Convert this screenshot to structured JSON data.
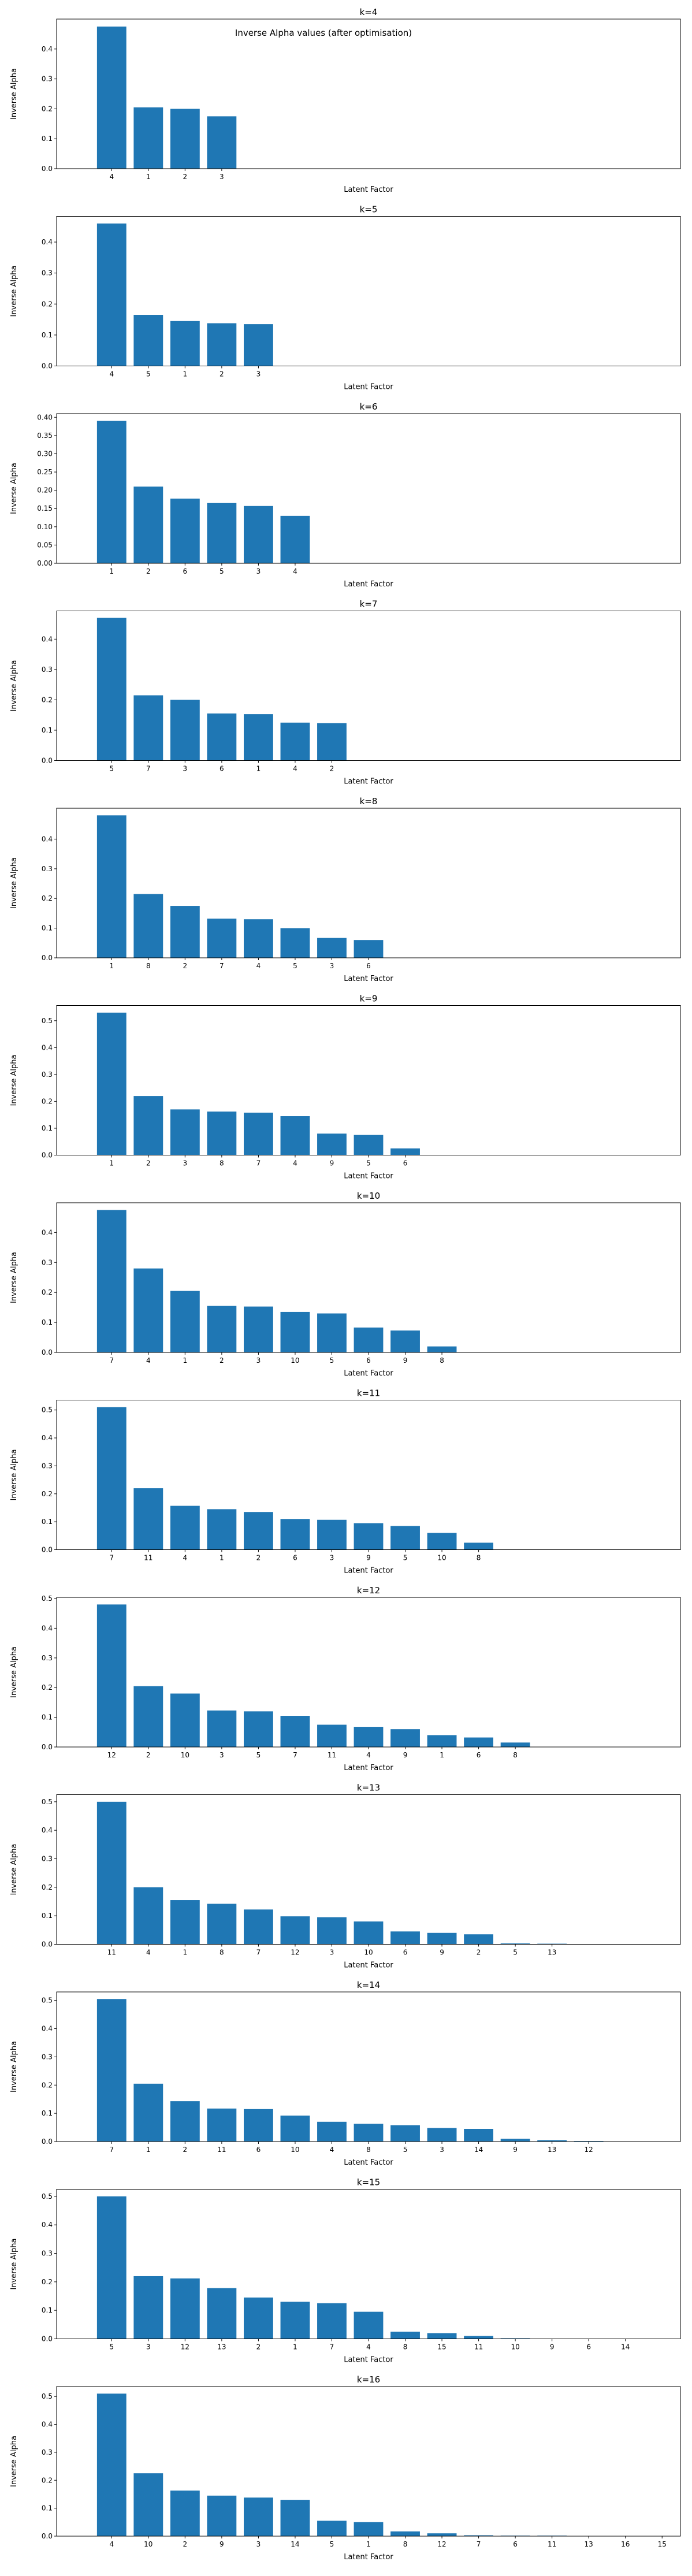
{
  "suptitle": "Inverse Alpha values (after optimisation)",
  "colors": {
    "bar": "#1f77b4",
    "highlight_tick": "#d62728",
    "axes": "#000000"
  },
  "chart_data": [
    {
      "type": "bar",
      "title": "k=4",
      "xlabel": "Latent Factor",
      "ylabel": "Inverse Alpha",
      "categories": [
        "4",
        "1",
        "2",
        "3"
      ],
      "values": [
        0.475,
        0.205,
        0.2,
        0.175
      ],
      "ylim": [
        0,
        0.5
      ],
      "yticks": [
        "0.0",
        "0.1",
        "0.2",
        "0.3",
        "0.4"
      ]
    },
    {
      "type": "bar",
      "title": "k=5",
      "xlabel": "Latent Factor",
      "ylabel": "Inverse Alpha",
      "categories": [
        "4",
        "5",
        "1",
        "2",
        "3"
      ],
      "values": [
        0.46,
        0.165,
        0.145,
        0.138,
        0.135
      ],
      "ylim": [
        0,
        0.483
      ],
      "yticks": [
        "0.0",
        "0.1",
        "0.2",
        "0.3",
        "0.4"
      ]
    },
    {
      "type": "bar",
      "title": "k=6",
      "xlabel": "Latent Factor",
      "ylabel": "Inverse Alpha",
      "categories": [
        "1",
        "2",
        "6",
        "5",
        "3",
        "4"
      ],
      "values": [
        0.39,
        0.21,
        0.177,
        0.165,
        0.157,
        0.13
      ],
      "ylim": [
        0,
        0.41
      ],
      "yticks": [
        "0.00",
        "0.05",
        "0.10",
        "0.15",
        "0.20",
        "0.25",
        "0.30",
        "0.35",
        "0.40"
      ]
    },
    {
      "type": "bar",
      "title": "k=7",
      "xlabel": "Latent Factor",
      "ylabel": "Inverse Alpha",
      "categories": [
        "5",
        "7",
        "3",
        "6",
        "1",
        "4",
        "2"
      ],
      "values": [
        0.47,
        0.215,
        0.2,
        0.155,
        0.153,
        0.125,
        0.123
      ],
      "ylim": [
        0,
        0.493
      ],
      "yticks": [
        "0.0",
        "0.1",
        "0.2",
        "0.3",
        "0.4"
      ]
    },
    {
      "type": "bar",
      "title": "k=8",
      "xlabel": "Latent Factor",
      "ylabel": "Inverse Alpha",
      "categories": [
        "1",
        "8",
        "2",
        "7",
        "4",
        "5",
        "3",
        "6"
      ],
      "values": [
        0.48,
        0.215,
        0.175,
        0.132,
        0.13,
        0.1,
        0.067,
        0.06
      ],
      "ylim": [
        0,
        0.504
      ],
      "yticks": [
        "0.0",
        "0.1",
        "0.2",
        "0.3",
        "0.4"
      ]
    },
    {
      "type": "bar",
      "title": "k=9",
      "xlabel": "Latent Factor",
      "ylabel": "Inverse Alpha",
      "categories": [
        "1",
        "2",
        "3",
        "8",
        "7",
        "4",
        "9",
        "5",
        "6"
      ],
      "values": [
        0.53,
        0.22,
        0.17,
        0.162,
        0.158,
        0.145,
        0.08,
        0.075,
        0.025
      ],
      "ylim": [
        0,
        0.5565
      ],
      "yticks": [
        "0.0",
        "0.1",
        "0.2",
        "0.3",
        "0.4",
        "0.5"
      ]
    },
    {
      "type": "bar",
      "title": "k=10",
      "xlabel": "Latent Factor",
      "ylabel": "Inverse Alpha",
      "categories": [
        "7",
        "4",
        "1",
        "2",
        "3",
        "10",
        "5",
        "6",
        "9",
        "8"
      ],
      "values": [
        0.475,
        0.28,
        0.205,
        0.155,
        0.153,
        0.135,
        0.13,
        0.083,
        0.073,
        0.02
      ],
      "ylim": [
        0,
        0.499
      ],
      "yticks": [
        "0.0",
        "0.1",
        "0.2",
        "0.3",
        "0.4"
      ]
    },
    {
      "type": "bar",
      "title": "k=11",
      "xlabel": "Latent Factor",
      "ylabel": "Inverse Alpha",
      "categories": [
        "7",
        "11",
        "4",
        "1",
        "2",
        "6",
        "3",
        "9",
        "5",
        "10",
        "8"
      ],
      "values": [
        0.51,
        0.22,
        0.157,
        0.145,
        0.135,
        0.11,
        0.107,
        0.095,
        0.085,
        0.06,
        0.025
      ],
      "ylim": [
        0,
        0.5355
      ],
      "yticks": [
        "0.0",
        "0.1",
        "0.2",
        "0.3",
        "0.4",
        "0.5"
      ],
      "highlighted_ticks": [
        "4",
        "10"
      ]
    },
    {
      "type": "bar",
      "title": "k=12",
      "xlabel": "Latent Factor",
      "ylabel": "Inverse Alpha",
      "categories": [
        "12",
        "2",
        "10",
        "3",
        "5",
        "7",
        "11",
        "4",
        "9",
        "1",
        "6",
        "8"
      ],
      "values": [
        0.48,
        0.205,
        0.18,
        0.123,
        0.12,
        0.105,
        0.075,
        0.068,
        0.06,
        0.04,
        0.032,
        0.015
      ],
      "ylim": [
        0,
        0.504
      ],
      "yticks": [
        "0.0",
        "0.1",
        "0.2",
        "0.3",
        "0.4",
        "0.5"
      ]
    },
    {
      "type": "bar",
      "title": "k=13",
      "xlabel": "Latent Factor",
      "ylabel": "Inverse Alpha",
      "categories": [
        "11",
        "4",
        "1",
        "8",
        "7",
        "12",
        "3",
        "10",
        "6",
        "9",
        "2",
        "5",
        "13"
      ],
      "values": [
        0.5,
        0.2,
        0.155,
        0.142,
        0.122,
        0.098,
        0.095,
        0.08,
        0.045,
        0.04,
        0.035,
        0.003,
        0.002
      ],
      "ylim": [
        0,
        0.525
      ],
      "yticks": [
        "0.0",
        "0.1",
        "0.2",
        "0.3",
        "0.4",
        "0.5"
      ]
    },
    {
      "type": "bar",
      "title": "k=14",
      "xlabel": "Latent Factor",
      "ylabel": "Inverse Alpha",
      "categories": [
        "7",
        "1",
        "2",
        "11",
        "6",
        "10",
        "4",
        "8",
        "5",
        "3",
        "14",
        "9",
        "13",
        "12"
      ],
      "values": [
        0.505,
        0.205,
        0.143,
        0.117,
        0.115,
        0.092,
        0.07,
        0.063,
        0.058,
        0.048,
        0.045,
        0.01,
        0.005,
        0.002
      ],
      "ylim": [
        0,
        0.53
      ],
      "yticks": [
        "0.0",
        "0.1",
        "0.2",
        "0.3",
        "0.4",
        "0.5"
      ]
    },
    {
      "type": "bar",
      "title": "k=15",
      "xlabel": "Latent Factor",
      "ylabel": "Inverse Alpha",
      "categories": [
        "5",
        "3",
        "12",
        "13",
        "2",
        "1",
        "7",
        "4",
        "8",
        "15",
        "11",
        "10",
        "9",
        "6",
        "14"
      ],
      "values": [
        0.5,
        0.22,
        0.212,
        0.178,
        0.145,
        0.13,
        0.125,
        0.095,
        0.025,
        0.02,
        0.01,
        0.002,
        0.001,
        0.001,
        0.001
      ],
      "ylim": [
        0,
        0.525
      ],
      "yticks": [
        "0.0",
        "0.1",
        "0.2",
        "0.3",
        "0.4",
        "0.5"
      ]
    },
    {
      "type": "bar",
      "title": "k=16",
      "xlabel": "Latent Factor",
      "ylabel": "Inverse Alpha",
      "categories": [
        "4",
        "10",
        "2",
        "9",
        "3",
        "14",
        "5",
        "1",
        "8",
        "12",
        "7",
        "6",
        "11",
        "13",
        "16",
        "15"
      ],
      "values": [
        0.51,
        0.225,
        0.163,
        0.145,
        0.138,
        0.13,
        0.055,
        0.05,
        0.017,
        0.01,
        0.003,
        0.002,
        0.002,
        0.001,
        0.001,
        0.001
      ],
      "ylim": [
        0,
        0.5355
      ],
      "yticks": [
        "0.0",
        "0.1",
        "0.2",
        "0.3",
        "0.4",
        "0.5"
      ]
    }
  ]
}
